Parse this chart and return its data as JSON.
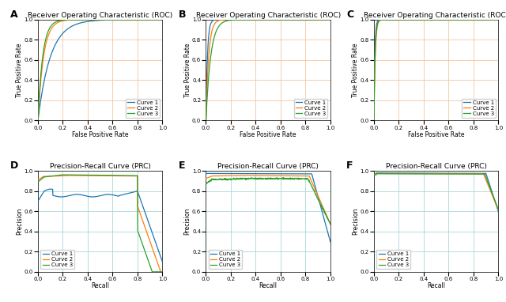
{
  "titles_roc": [
    "Receiver Operating Characteristic (ROC)",
    "Receiver Operating Characteristic (ROC)",
    "Receiver Operating Characteristic (ROC)"
  ],
  "titles_prc": [
    "Precision-Recall Curve (PRC)",
    "Precision-Recall Curve (PRC)",
    "Precision-Recall Curve (PRC)"
  ],
  "xlabel_roc": "False Positive Rate",
  "ylabel_roc": "True Positive Rate",
  "xlabel_prc": "Recall",
  "ylabel_prc": "Precision",
  "colors": [
    "#1f77b4",
    "#ff7f0e",
    "#2ca02c"
  ],
  "legend_labels": [
    "Curve 1",
    "Curve 2",
    "Curve 3"
  ],
  "panel_labels": [
    "A",
    "B",
    "C",
    "D",
    "E",
    "F"
  ],
  "background_color": "#ffffff",
  "grid_color_roc": "#f5c6a0",
  "grid_color_prc": "#a8d8d8",
  "title_fontsize": 6.5,
  "axis_fontsize": 5.5,
  "tick_fontsize": 5.0,
  "legend_fontsize": 5.0,
  "panel_label_fontsize": 9,
  "linewidth": 0.9
}
